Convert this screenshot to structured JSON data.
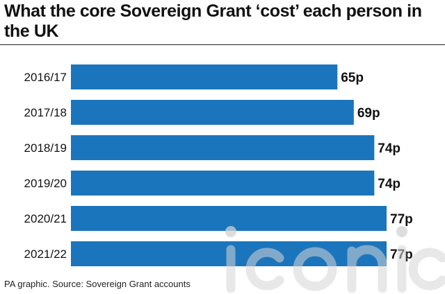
{
  "title": "What the core Sovereign Grant ‘cost’ each person in the UK",
  "source": "PA graphic. Source: Sovereign Grant accounts",
  "watermark": "iconic",
  "chart_data": {
    "type": "bar",
    "orientation": "horizontal",
    "categories": [
      "2016/17",
      "2017/18",
      "2018/19",
      "2019/20",
      "2020/21",
      "2021/22"
    ],
    "values": [
      65,
      69,
      74,
      74,
      77,
      77
    ],
    "value_labels": [
      "65p",
      "69p",
      "74p",
      "74p",
      "77p",
      "77p"
    ],
    "xlim": [
      0,
      77
    ],
    "grid": false,
    "legend": "none",
    "bar_color": "#1b75bc"
  }
}
